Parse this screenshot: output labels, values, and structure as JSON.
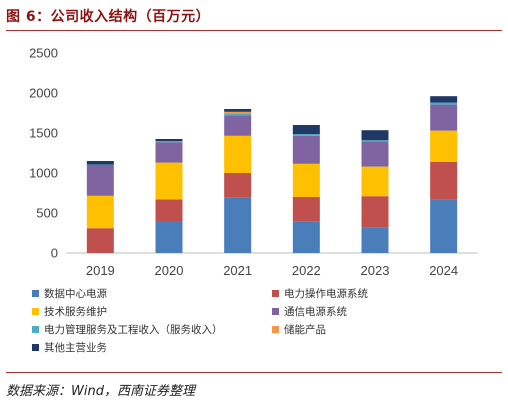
{
  "header": {
    "title": "图 6：公司收入结构（百万元）"
  },
  "footer": {
    "source": "数据来源：Wind，西南证券整理"
  },
  "chart_data": {
    "type": "bar",
    "stacked": true,
    "title": "图 6：公司收入结构（百万元）",
    "categories": [
      "2019",
      "2020",
      "2021",
      "2022",
      "2023",
      "2024"
    ],
    "ylim": [
      0,
      2500
    ],
    "yticks": [
      0,
      500,
      1000,
      1500,
      2000,
      2500
    ],
    "grid": false,
    "legend_position": "bottom",
    "series": [
      {
        "name": "数据中心电源",
        "color": "#4a7ebb",
        "values": [
          0,
          400,
          690,
          390,
          315,
          670
        ]
      },
      {
        "name": "电力操作电源系统",
        "color": "#c0504d",
        "values": [
          310,
          270,
          310,
          310,
          395,
          470
        ]
      },
      {
        "name": "技术服务维护",
        "color": "#ffc000",
        "values": [
          405,
          460,
          465,
          415,
          370,
          390
        ]
      },
      {
        "name": "通信电源系统",
        "color": "#8064a2",
        "values": [
          385,
          255,
          255,
          350,
          315,
          325
        ]
      },
      {
        "name": "电力管理服务及工程收入（服务收入）",
        "color": "#4bacc6",
        "values": [
          5,
          15,
          25,
          20,
          15,
          25
        ]
      },
      {
        "name": "储能产品",
        "color": "#f79646",
        "values": [
          0,
          0,
          20,
          0,
          0,
          0
        ]
      },
      {
        "name": "其他主营业务",
        "color": "#1f3864",
        "values": [
          45,
          25,
          35,
          115,
          125,
          80
        ]
      }
    ]
  }
}
